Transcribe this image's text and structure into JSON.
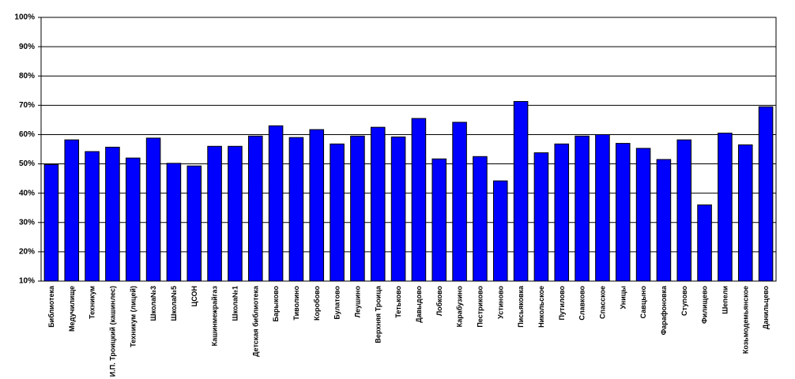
{
  "chart_data": {
    "type": "bar",
    "categories": [
      "Библиотека",
      "Медучилище",
      "Техникум",
      "И.П. Троицкий (кашинлес)",
      "Техникум (лицей)",
      "Школа№3",
      "Школа№5",
      "ЦСОН",
      "Кашинмежрайгаз",
      "Школа№1",
      "Детская библиотека",
      "Барыково",
      "Тиволино",
      "Коробово",
      "Булатово",
      "Леушино",
      "Верхняя Троица",
      "Тетьково",
      "Давыдово",
      "Лобково",
      "Карабузино",
      "Пестриково",
      "Устиново",
      "Письяковка",
      "Никольское",
      "Путилово",
      "Славково",
      "Спасское",
      "Уницы",
      "Савцыно",
      "Фарафоновка",
      "Ступово",
      "Филищево",
      "Шепели",
      "Козьмодемьянское",
      "Данильцево"
    ],
    "values": [
      49.8,
      58.2,
      54.2,
      55.7,
      52,
      58.8,
      50.2,
      49.3,
      56,
      56,
      59.5,
      63,
      59,
      61.7,
      56.8,
      59.5,
      62.5,
      59.2,
      65.5,
      51.7,
      64.2,
      52.5,
      44.2,
      71.3,
      53.8,
      56.8,
      59.5,
      60,
      57,
      55.3,
      51.5,
      58.2,
      36,
      60.5,
      56.5,
      69.5
    ],
    "color": "#0000ff",
    "ylim": [
      10,
      100
    ],
    "yticks": [
      {
        "value": 10,
        "label": "10%"
      },
      {
        "value": 20,
        "label": "20%"
      },
      {
        "value": 30,
        "label": "30%"
      },
      {
        "value": 40,
        "label": "40%"
      },
      {
        "value": 50,
        "label": "50%"
      },
      {
        "value": 60,
        "label": "60%"
      },
      {
        "value": 70,
        "label": "70%"
      },
      {
        "value": 80,
        "label": "80%"
      },
      {
        "value": 90,
        "label": "90%"
      },
      {
        "value": 100,
        "label": "100%"
      }
    ],
    "grid": true
  }
}
